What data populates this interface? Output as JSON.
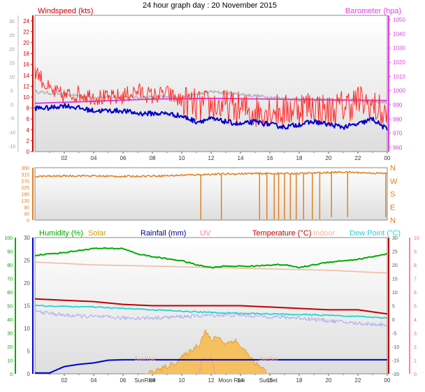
{
  "title": "24 hour graph day : 20 November 2015",
  "x_ticks": [
    "02",
    "04",
    "06",
    "08",
    "10",
    "12",
    "14",
    "16",
    "18",
    "20",
    "22",
    "00"
  ],
  "colors": {
    "windspeed": "#cc0000",
    "gust": "#ff2a2a",
    "avg": "#0000cc",
    "barometer": "#e040e0",
    "temp": "#c00000",
    "indoor": "#f0b8a0",
    "humidity": "#00aa00",
    "dewpoint": "#22d4d4",
    "rainfall": "#0000cc",
    "solar": "#f0b040",
    "uv": "#ff9999",
    "direction": "#e08020",
    "feels": "#b0b0f0",
    "grey": "#b4b4b4"
  },
  "chart_data": [
    {
      "type": "line",
      "name": "windspeed-panel",
      "left_label": "Windspeed (kts)",
      "right_label": "Barometer (hpa)",
      "left_ticks": [
        24,
        22,
        20,
        18,
        16,
        14,
        12,
        10,
        8,
        6,
        4,
        2,
        0
      ],
      "left_ylim": [
        0,
        25
      ],
      "outer_left_ticks": [
        30,
        25,
        20,
        15,
        10,
        5,
        0,
        -5,
        -10,
        -15
      ],
      "outer_left_ylim": [
        -17,
        32
      ],
      "right_ticks": [
        1050,
        1040,
        1030,
        1020,
        1010,
        1000,
        990,
        980,
        970,
        960
      ],
      "right_ylim": [
        957,
        1053
      ],
      "x_range": [
        0,
        24
      ],
      "series": [
        {
          "key": "gust",
          "values": [
            [
              0,
              15
            ],
            [
              0.5,
              13
            ],
            [
              1,
              11
            ],
            [
              2,
              10
            ],
            [
              3,
              10.5
            ],
            [
              4,
              10
            ],
            [
              5,
              9.5
            ],
            [
              6,
              10
            ],
            [
              7,
              11
            ],
            [
              8,
              10
            ],
            [
              9,
              10.5
            ],
            [
              10,
              9
            ],
            [
              11,
              8
            ],
            [
              12,
              8
            ],
            [
              13,
              8
            ],
            [
              14,
              7.5
            ],
            [
              15,
              7
            ],
            [
              16,
              7.5
            ],
            [
              17,
              7
            ],
            [
              18,
              8
            ],
            [
              19,
              8
            ],
            [
              20,
              7
            ],
            [
              21,
              8
            ],
            [
              22,
              9
            ],
            [
              23,
              8
            ],
            [
              24,
              6
            ]
          ]
        },
        {
          "key": "avg",
          "values": [
            [
              0,
              8
            ],
            [
              1,
              8
            ],
            [
              2,
              8.5
            ],
            [
              3,
              8
            ],
            [
              4,
              7.5
            ],
            [
              5,
              7.5
            ],
            [
              6,
              7.5
            ],
            [
              7,
              7
            ],
            [
              8,
              7
            ],
            [
              9,
              7
            ],
            [
              10,
              6.5
            ],
            [
              11,
              5.5
            ],
            [
              12,
              6
            ],
            [
              13,
              5.5
            ],
            [
              14,
              5
            ],
            [
              15,
              5.5
            ],
            [
              16,
              5
            ],
            [
              17,
              4.5
            ],
            [
              18,
              5
            ],
            [
              19,
              5.5
            ],
            [
              20,
              5
            ],
            [
              21,
              4.5
            ],
            [
              22,
              5
            ],
            [
              23,
              6
            ],
            [
              24,
              4
            ]
          ]
        },
        {
          "key": "barometer",
          "values": [
            [
              0,
              991
            ],
            [
              4,
              992.5
            ],
            [
              8,
              994
            ],
            [
              12,
              994.5
            ],
            [
              16,
              994
            ],
            [
              20,
              993.5
            ],
            [
              24,
              993
            ]
          ]
        },
        {
          "key": "grey",
          "values": [
            [
              0,
              11
            ],
            [
              4,
              10
            ],
            [
              8,
              10
            ],
            [
              10,
              10
            ],
            [
              11,
              10.5
            ],
            [
              12,
              11
            ],
            [
              14,
              10.5
            ],
            [
              16,
              10
            ],
            [
              18,
              9.5
            ],
            [
              20,
              9.5
            ],
            [
              22,
              9.5
            ],
            [
              24,
              9
            ]
          ]
        }
      ]
    },
    {
      "type": "line",
      "name": "direction-panel",
      "left_ticks": [
        360,
        315,
        270,
        225,
        180,
        135,
        90,
        45,
        0
      ],
      "right_ticks": [
        "N",
        "W",
        "S",
        "E",
        "N"
      ],
      "ylim": [
        0,
        360
      ],
      "x_range": [
        0,
        24
      ],
      "series": [
        {
          "key": "direction",
          "values": [
            [
              0,
              300
            ],
            [
              3,
              305
            ],
            [
              6,
              300
            ],
            [
              9,
              305
            ],
            [
              12,
              315
            ],
            [
              15,
              320
            ],
            [
              18,
              320
            ],
            [
              21,
              330
            ],
            [
              24,
              320
            ]
          ]
        }
      ],
      "drops_hours": [
        11.3,
        12.7,
        15.3,
        15.8,
        16.3,
        16.6,
        17.0,
        17.4,
        17.8,
        18.3,
        18.9,
        19.4,
        20.2,
        21.3,
        23.9
      ]
    },
    {
      "type": "line",
      "name": "weather-panel",
      "legend": [
        "Humidity (%)",
        "Solar",
        "Rainfall (mm)",
        "UV",
        "Temperature (°C)",
        "Indoor",
        "Dew Point (°C)"
      ],
      "outer_left_ticks": [
        100,
        90,
        80,
        70,
        60,
        50,
        40,
        30,
        20,
        10,
        0
      ],
      "outer_left_ylim": [
        0,
        100
      ],
      "inner_left_ticks": [
        30,
        25,
        20,
        15,
        10,
        5,
        0
      ],
      "inner_left_ylim": [
        0,
        30
      ],
      "inner_right_ticks": [
        30,
        25,
        20,
        15,
        10,
        5,
        0,
        -5,
        -10,
        -15,
        -20
      ],
      "inner_right_ylim": [
        -20,
        30
      ],
      "outer_right_ticks": [
        10,
        9,
        8,
        7,
        6,
        5,
        4,
        3,
        2,
        1,
        0
      ],
      "outer_right_ylim": [
        0,
        10
      ],
      "x_range": [
        0,
        24
      ],
      "sun_labels": [
        {
          "text": "SunRise",
          "hour": 7.5
        },
        {
          "text": "SunSet",
          "hour": 15.9
        }
      ],
      "moon_labels": [
        {
          "text": "Moon Rise",
          "hour": 13.4
        }
      ],
      "series": [
        {
          "key": "humidity",
          "values": [
            [
              0,
              87
            ],
            [
              2,
              89
            ],
            [
              4,
              92
            ],
            [
              6,
              92
            ],
            [
              7,
              88
            ],
            [
              8,
              86
            ],
            [
              10,
              83
            ],
            [
              11,
              80
            ],
            [
              12,
              78
            ],
            [
              13,
              79
            ],
            [
              14,
              79
            ],
            [
              15,
              79
            ],
            [
              16,
              80
            ],
            [
              17,
              80
            ],
            [
              18,
              78
            ],
            [
              19,
              80
            ],
            [
              20,
              82
            ],
            [
              21,
              83
            ],
            [
              22,
              84
            ],
            [
              23,
              86
            ],
            [
              24,
              88
            ]
          ]
        },
        {
          "key": "indoor",
          "values": [
            [
              0,
              21
            ],
            [
              4,
              20
            ],
            [
              8,
              19.5
            ],
            [
              12,
              19
            ],
            [
              16,
              18.5
            ],
            [
              20,
              18
            ],
            [
              24,
              17
            ]
          ]
        },
        {
          "key": "temp",
          "values": [
            [
              0,
              7.5
            ],
            [
              2,
              7
            ],
            [
              4,
              6.5
            ],
            [
              6,
              5.5
            ],
            [
              8,
              5
            ],
            [
              10,
              5
            ],
            [
              12,
              5
            ],
            [
              14,
              5
            ],
            [
              16,
              4.5
            ],
            [
              18,
              4
            ],
            [
              20,
              3.5
            ],
            [
              22,
              3.5
            ],
            [
              24,
              2
            ]
          ]
        },
        {
          "key": "dewpoint",
          "values": [
            [
              0,
              5
            ],
            [
              4,
              4.5
            ],
            [
              8,
              3.5
            ],
            [
              12,
              2.5
            ],
            [
              16,
              2
            ],
            [
              20,
              1.5
            ],
            [
              24,
              0.5
            ]
          ]
        },
        {
          "key": "feels",
          "values": [
            [
              0,
              3
            ],
            [
              2,
              1.5
            ],
            [
              4,
              1
            ],
            [
              6,
              0.5
            ],
            [
              8,
              0.5
            ],
            [
              10,
              1
            ],
            [
              12,
              1.5
            ],
            [
              14,
              1.5
            ],
            [
              16,
              1
            ],
            [
              18,
              0.5
            ],
            [
              20,
              -0.5
            ],
            [
              22,
              -1.5
            ],
            [
              24,
              -2
            ]
          ]
        },
        {
          "key": "rainfall",
          "values": [
            [
              0,
              0.2
            ],
            [
              1,
              0.2
            ],
            [
              2,
              1.6
            ],
            [
              3,
              2.1
            ],
            [
              4,
              2.4
            ],
            [
              5,
              3.0
            ],
            [
              6,
              3.1
            ],
            [
              24,
              3.1
            ]
          ]
        },
        {
          "key": "solar",
          "values": [
            [
              7.5,
              0
            ],
            [
              8.5,
              0.3
            ],
            [
              9.5,
              0.8
            ],
            [
              10.5,
              1.6
            ],
            [
              11.2,
              2.2
            ],
            [
              11.6,
              3.2
            ],
            [
              12.0,
              2.4
            ],
            [
              12.4,
              2.8
            ],
            [
              13.0,
              2.2
            ],
            [
              13.6,
              2.5
            ],
            [
              14.3,
              1.7
            ],
            [
              15.0,
              0.8
            ],
            [
              15.9,
              0
            ]
          ]
        },
        {
          "key": "uv",
          "values": [
            [
              11.2,
              0
            ],
            [
              11.4,
              1.2
            ],
            [
              11.8,
              1.0
            ],
            [
              12.0,
              1.2
            ],
            [
              12.3,
              0
            ]
          ]
        }
      ]
    }
  ]
}
